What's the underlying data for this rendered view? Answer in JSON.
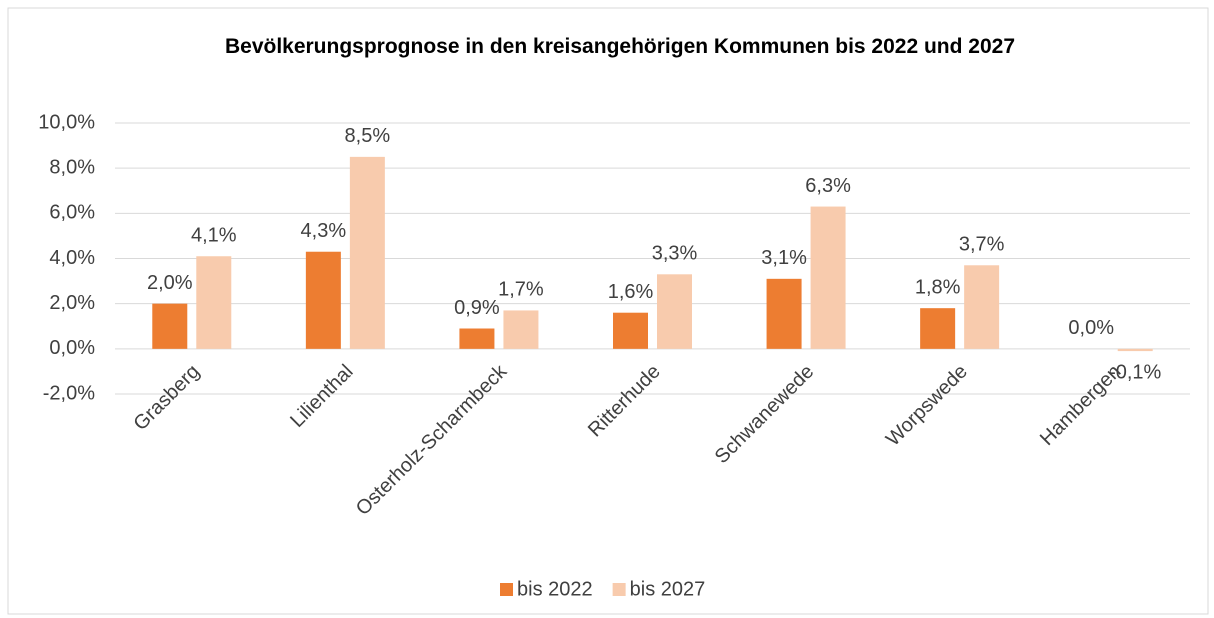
{
  "chart_data": {
    "type": "bar",
    "title": "Bevölkerungsprognose in den kreisangehörigen Kommunen bis 2022 und 2027",
    "categories": [
      "Grasberg",
      "Lilienthal",
      "Osterholz-Scharmbeck",
      "Ritterhude",
      "Schwanewede",
      "Worpswede",
      "Hambergen"
    ],
    "series": [
      {
        "name": "bis 2022",
        "color": "#ed7d31",
        "values": [
          2.0,
          4.3,
          0.9,
          1.6,
          3.1,
          1.8,
          0.0
        ],
        "value_labels": [
          "2,0%",
          "4,3%",
          "0,9%",
          "1,6%",
          "3,1%",
          "1,8%",
          "0,0%"
        ]
      },
      {
        "name": "bis 2027",
        "color": "#f8cbad",
        "values": [
          4.1,
          8.5,
          1.7,
          3.3,
          6.3,
          3.7,
          -0.1
        ],
        "value_labels": [
          "4,1%",
          "8,5%",
          "1,7%",
          "3,3%",
          "6,3%",
          "3,7%",
          "-0,1%"
        ]
      }
    ],
    "ylim": [
      -2,
      10
    ],
    "yticks": [
      {
        "value": -2,
        "label": "-2,0%"
      },
      {
        "value": 0,
        "label": "0,0%"
      },
      {
        "value": 2,
        "label": "2,0%"
      },
      {
        "value": 4,
        "label": "4,0%"
      },
      {
        "value": 6,
        "label": "6,0%"
      },
      {
        "value": 8,
        "label": "8,0%"
      },
      {
        "value": 10,
        "label": "10,0%"
      }
    ],
    "grid": true,
    "legend": "bottom"
  }
}
